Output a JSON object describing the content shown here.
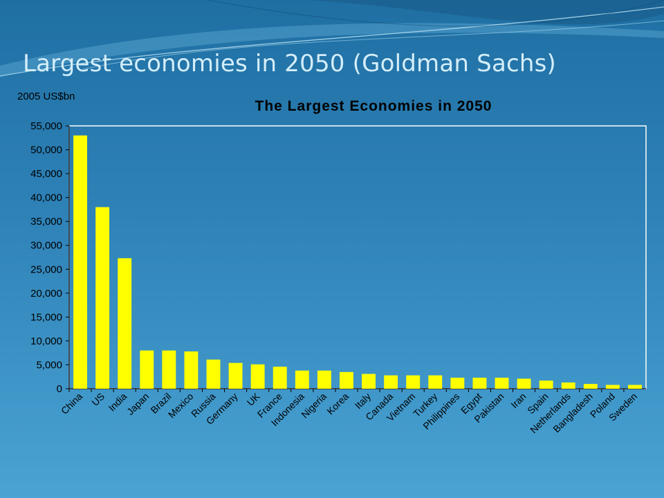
{
  "slide": {
    "title": "Largest economies in 2050 (Goldman Sachs)"
  },
  "colors": {
    "bar": "#ffff00",
    "text": "#000000",
    "axis": "#000000",
    "plot_border": "#ffffff"
  },
  "chart_data": {
    "type": "bar",
    "title": "The Largest Economies in 2050",
    "unit_label": "2005 US$bn",
    "xlabel": "",
    "ylabel": "",
    "ylim": [
      0,
      55000
    ],
    "y_ticks": [
      "0",
      "5,000",
      "10,000",
      "15,000",
      "20,000",
      "25,000",
      "30,000",
      "35,000",
      "40,000",
      "45,000",
      "50,000",
      "55,000"
    ],
    "grid": false,
    "categories": [
      "China",
      "US",
      "India",
      "Japan",
      "Brazil",
      "Mexico",
      "Russia",
      "Germany",
      "UK",
      "France",
      "Indonesia",
      "Nigeria",
      "Korea",
      "Italy",
      "Canada",
      "Vietnam",
      "Turkey",
      "Philippines",
      "Egypt",
      "Pakistan",
      "Iran",
      "Spain",
      "Netherlands",
      "Bangladesh",
      "Poland",
      "Sweden"
    ],
    "values": [
      53000,
      38000,
      27300,
      8000,
      8000,
      7800,
      6100,
      5400,
      5100,
      4600,
      3800,
      3800,
      3500,
      3100,
      2800,
      2800,
      2800,
      2300,
      2300,
      2300,
      2100,
      1700,
      1300,
      1000,
      800,
      800
    ]
  }
}
